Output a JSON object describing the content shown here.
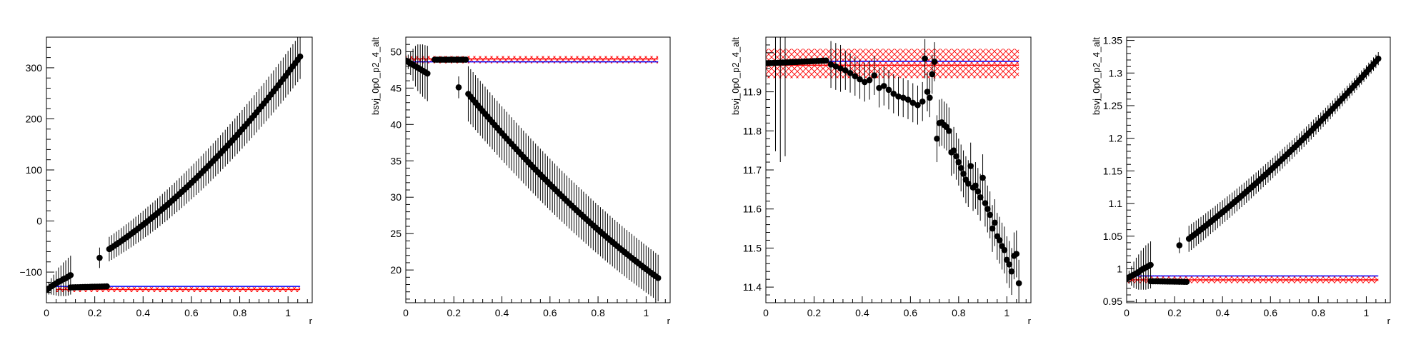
{
  "chart_data": [
    {
      "type": "scatter",
      "xlabel": "r",
      "ylabel": "",
      "xlim": [
        0,
        1.1
      ],
      "ylim": [
        -160,
        360
      ],
      "xticks": [
        0,
        0.2,
        0.4,
        0.6,
        0.8,
        1
      ],
      "xtick_labels": [
        "0",
        "0.2",
        "0.4",
        "0.6",
        "0.8",
        "1"
      ],
      "yticks": [
        -100,
        0,
        100,
        200,
        300
      ],
      "ytick_labels": [
        "−100",
        "0",
        "100",
        "200",
        "300"
      ],
      "reference": {
        "blue": -128,
        "red": -134,
        "band": [
          -139,
          -129
        ],
        "xrange": [
          0.04,
          1.05
        ]
      },
      "lower_branch": {
        "x_start": 0.1,
        "x_end": 0.25,
        "y_start": -130,
        "y_end": -128,
        "n": 16
      },
      "points": [
        [
          0.0,
          -135,
          8
        ],
        [
          0.01,
          -132,
          12
        ],
        [
          0.02,
          -128,
          16
        ],
        [
          0.03,
          -125,
          20
        ],
        [
          0.04,
          -122,
          24
        ],
        [
          0.05,
          -119,
          28
        ],
        [
          0.06,
          -117,
          30
        ],
        [
          0.07,
          -114,
          33
        ],
        [
          0.08,
          -112,
          35
        ],
        [
          0.09,
          -109,
          37
        ],
        [
          0.1,
          -106,
          38
        ],
        [
          0.22,
          -72,
          20
        ]
      ],
      "upper_branch": {
        "x_start": 0.26,
        "x_end": 1.05,
        "y_start": -55,
        "y_end": 322,
        "n": 80,
        "err_start": 24,
        "err_end": 44,
        "curvature": 0.35
      }
    },
    {
      "type": "scatter",
      "xlabel": "r",
      "ylabel": "bsvj_0p0_p2_4_alt",
      "xlim": [
        0,
        1.1
      ],
      "ylim": [
        15.5,
        52
      ],
      "xticks": [
        0,
        0.2,
        0.4,
        0.6,
        0.8,
        1
      ],
      "xtick_labels": [
        "0",
        "0.2",
        "0.4",
        "0.6",
        "0.8",
        "1"
      ],
      "yticks": [
        20,
        25,
        30,
        35,
        40,
        45,
        50
      ],
      "ytick_labels": [
        "20",
        "25",
        "30",
        "35",
        "40",
        "45",
        "50"
      ],
      "reference": {
        "blue": 48.6,
        "red": 49.0,
        "band": [
          48.4,
          49.4
        ],
        "xrange": [
          0.0,
          1.05
        ]
      },
      "lower_branch": {
        "x_start": 0.12,
        "x_end": 0.25,
        "y_start": 48.9,
        "y_end": 48.9,
        "n": 14
      },
      "points": [
        [
          0.0,
          48.8,
          0.4
        ],
        [
          0.01,
          48.6,
          1
        ],
        [
          0.02,
          48.4,
          1.6
        ],
        [
          0.03,
          48.2,
          2.2
        ],
        [
          0.04,
          48.0,
          2.8
        ],
        [
          0.05,
          47.8,
          3.2
        ],
        [
          0.06,
          47.6,
          3.4
        ],
        [
          0.07,
          47.4,
          3.6
        ],
        [
          0.08,
          47.2,
          3.7
        ],
        [
          0.09,
          47.0,
          3.8
        ],
        [
          0.22,
          45.1,
          1.5
        ]
      ],
      "upper_branch": {
        "x_start": 0.26,
        "x_end": 1.05,
        "y_start": 44.2,
        "y_end": 18.9,
        "n": 80,
        "err_start": 3.8,
        "err_end": 3.2,
        "curvature": -0.25
      }
    },
    {
      "type": "scatter",
      "xlabel": "r",
      "ylabel": "bsvj_0p0_p2_4_alt",
      "xlim": [
        0,
        1.1
      ],
      "ylim": [
        11.36,
        12.04
      ],
      "xticks": [
        0,
        0.2,
        0.4,
        0.6,
        0.8,
        1
      ],
      "xtick_labels": [
        "0",
        "0.2",
        "0.4",
        "0.6",
        "0.8",
        "1"
      ],
      "yticks": [
        11.4,
        11.5,
        11.6,
        11.7,
        11.8,
        11.9
      ],
      "ytick_labels": [
        "11.4",
        "11.5",
        "11.6",
        "11.7",
        "11.8",
        "11.9"
      ],
      "reference": {
        "blue": 11.978,
        "red": 11.968,
        "band": [
          11.935,
          12.01
        ],
        "xrange": [
          0.0,
          1.05
        ]
      },
      "lower_branch": {
        "x_start": 0.0,
        "x_end": 0.25,
        "y_start": 11.973,
        "y_end": 11.98,
        "n": 26
      },
      "points": [
        [
          0.27,
          11.97,
          0.06
        ],
        [
          0.29,
          11.965,
          0.06
        ],
        [
          0.31,
          11.96,
          0.06
        ],
        [
          0.33,
          11.955,
          0.05
        ],
        [
          0.35,
          11.948,
          0.05
        ],
        [
          0.37,
          11.94,
          0.05
        ],
        [
          0.39,
          11.932,
          0.05
        ],
        [
          0.41,
          11.925,
          0.05
        ],
        [
          0.43,
          11.93,
          0.05
        ],
        [
          0.45,
          11.942,
          0.05
        ],
        [
          0.47,
          11.91,
          0.05
        ],
        [
          0.49,
          11.915,
          0.05
        ],
        [
          0.51,
          11.905,
          0.05
        ],
        [
          0.53,
          11.895,
          0.05
        ],
        [
          0.55,
          11.888,
          0.05
        ],
        [
          0.57,
          11.885,
          0.05
        ],
        [
          0.59,
          11.88,
          0.05
        ],
        [
          0.61,
          11.872,
          0.05
        ],
        [
          0.63,
          11.866,
          0.05
        ],
        [
          0.65,
          11.875,
          0.05
        ],
        [
          0.66,
          11.985,
          0.05
        ],
        [
          0.67,
          11.9,
          0.05
        ],
        [
          0.68,
          11.885,
          0.05
        ],
        [
          0.69,
          11.945,
          0.05
        ],
        [
          0.7,
          11.977,
          0.05
        ],
        [
          0.71,
          11.78,
          0.06
        ],
        [
          0.72,
          11.82,
          0.06
        ],
        [
          0.73,
          11.822,
          0.06
        ],
        [
          0.74,
          11.815,
          0.06
        ],
        [
          0.75,
          11.81,
          0.06
        ],
        [
          0.76,
          11.8,
          0.06
        ],
        [
          0.77,
          11.745,
          0.06
        ],
        [
          0.78,
          11.75,
          0.06
        ],
        [
          0.79,
          11.735,
          0.06
        ],
        [
          0.8,
          11.72,
          0.06
        ],
        [
          0.81,
          11.705,
          0.06
        ],
        [
          0.82,
          11.69,
          0.06
        ],
        [
          0.83,
          11.675,
          0.06
        ],
        [
          0.84,
          11.665,
          0.06
        ],
        [
          0.85,
          11.71,
          0.06
        ],
        [
          0.86,
          11.655,
          0.06
        ],
        [
          0.87,
          11.66,
          0.06
        ],
        [
          0.88,
          11.645,
          0.06
        ],
        [
          0.89,
          11.63,
          0.06
        ],
        [
          0.9,
          11.68,
          0.06
        ],
        [
          0.91,
          11.615,
          0.06
        ],
        [
          0.92,
          11.6,
          0.06
        ],
        [
          0.93,
          11.585,
          0.06
        ],
        [
          0.94,
          11.55,
          0.06
        ],
        [
          0.95,
          11.565,
          0.06
        ],
        [
          0.96,
          11.53,
          0.06
        ],
        [
          0.97,
          11.52,
          0.06
        ],
        [
          0.98,
          11.505,
          0.06
        ],
        [
          0.99,
          11.495,
          0.06
        ],
        [
          1.0,
          11.47,
          0.06
        ],
        [
          1.01,
          11.458,
          0.06
        ],
        [
          1.02,
          11.44,
          0.06
        ],
        [
          1.03,
          11.48,
          0.06
        ],
        [
          1.04,
          11.485,
          0.06
        ],
        [
          1.05,
          11.41,
          0.06
        ]
      ],
      "extra_err": [
        [
          0.06,
          11.97,
          0.25
        ],
        [
          0.08,
          11.975,
          0.24
        ],
        [
          0.04,
          11.968,
          0.22
        ]
      ]
    },
    {
      "type": "scatter",
      "xlabel": "r",
      "ylabel": "bsvj_0p0_p2_4_alt",
      "xlim": [
        0,
        1.1
      ],
      "ylim": [
        0.948,
        1.355
      ],
      "xticks": [
        0,
        0.2,
        0.4,
        0.6,
        0.8,
        1
      ],
      "xtick_labels": [
        "0",
        "0.2",
        "0.4",
        "0.6",
        "0.8",
        "1"
      ],
      "yticks": [
        0.95,
        1.0,
        1.05,
        1.1,
        1.15,
        1.2,
        1.25,
        1.3,
        1.35
      ],
      "ytick_labels": [
        "0.95",
        "1",
        "1.05",
        "1.1",
        "1.15",
        "1.2",
        "1.25",
        "1.3",
        "1.35"
      ],
      "reference": {
        "blue": 0.989,
        "red": 0.983,
        "band": [
          0.978,
          0.99
        ],
        "xrange": [
          0.0,
          1.05
        ]
      },
      "lower_branch": {
        "x_start": 0.1,
        "x_end": 0.25,
        "y_start": 0.981,
        "y_end": 0.98,
        "n": 16
      },
      "points": [
        [
          0.0,
          0.985,
          0.005
        ],
        [
          0.01,
          0.987,
          0.01
        ],
        [
          0.02,
          0.989,
          0.015
        ],
        [
          0.03,
          0.991,
          0.02
        ],
        [
          0.04,
          0.993,
          0.024
        ],
        [
          0.05,
          0.995,
          0.027
        ],
        [
          0.06,
          0.998,
          0.03
        ],
        [
          0.07,
          1.0,
          0.032
        ],
        [
          0.08,
          1.002,
          0.034
        ],
        [
          0.09,
          1.004,
          0.035
        ],
        [
          0.1,
          1.006,
          0.036
        ],
        [
          0.22,
          1.036,
          0.012
        ]
      ],
      "upper_branch": {
        "x_start": 0.26,
        "x_end": 1.05,
        "y_start": 1.046,
        "y_end": 1.322,
        "n": 80,
        "err_start": 0.02,
        "err_end": 0.01,
        "curvature": 0.2
      }
    }
  ]
}
